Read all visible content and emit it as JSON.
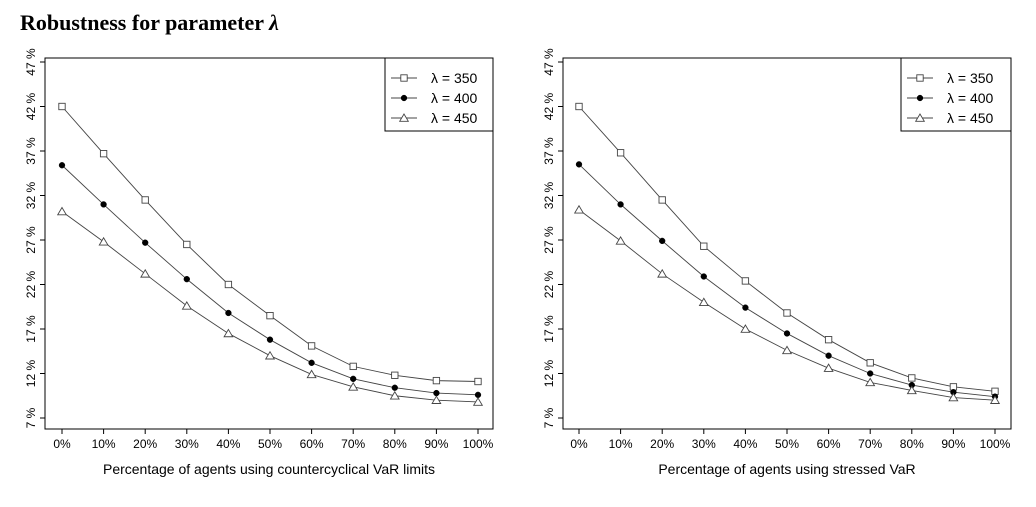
{
  "title": {
    "text": "Robustness for parameter ",
    "symbol": "λ"
  },
  "chart_data": [
    {
      "type": "line",
      "title": "",
      "xlabel": "Percentage of agents using countercyclical VaR limits",
      "ylabel": "",
      "categories": [
        "0%",
        "10%",
        "20%",
        "30%",
        "40%",
        "50%",
        "60%",
        "70%",
        "80%",
        "90%",
        "100%"
      ],
      "yticks": [
        "7 %",
        "12 %",
        "17 %",
        "22 %",
        "27 %",
        "32 %",
        "37 %",
        "42 %",
        "47 %"
      ],
      "ylim": [
        7,
        47
      ],
      "grid": false,
      "legend_position": "top-right",
      "series": [
        {
          "name": "λ = 350",
          "marker": "square",
          "values": [
            42.0,
            36.7,
            31.5,
            26.5,
            22.0,
            18.5,
            15.1,
            12.8,
            11.8,
            11.2,
            11.1
          ]
        },
        {
          "name": "λ = 400",
          "marker": "filled-circle",
          "values": [
            35.4,
            31.0,
            26.7,
            22.6,
            18.8,
            15.8,
            13.2,
            11.4,
            10.4,
            9.8,
            9.6
          ]
        },
        {
          "name": "λ = 450",
          "marker": "triangle",
          "values": [
            30.2,
            26.8,
            23.2,
            19.6,
            16.5,
            14.0,
            11.9,
            10.5,
            9.5,
            9.0,
            8.8
          ]
        }
      ]
    },
    {
      "type": "line",
      "title": "",
      "xlabel": "Percentage of agents using stressed VaR",
      "ylabel": "",
      "categories": [
        "0%",
        "10%",
        "20%",
        "30%",
        "40%",
        "50%",
        "60%",
        "70%",
        "80%",
        "90%",
        "100%"
      ],
      "yticks": [
        "7 %",
        "12 %",
        "17 %",
        "22 %",
        "27 %",
        "32 %",
        "37 %",
        "42 %",
        "47 %"
      ],
      "ylim": [
        7,
        47
      ],
      "grid": false,
      "legend_position": "top-right",
      "series": [
        {
          "name": "λ = 350",
          "marker": "square",
          "values": [
            42.0,
            36.8,
            31.5,
            26.3,
            22.4,
            18.8,
            15.8,
            13.2,
            11.5,
            10.5,
            10.0
          ]
        },
        {
          "name": "λ = 400",
          "marker": "filled-circle",
          "values": [
            35.5,
            31.0,
            26.9,
            22.9,
            19.4,
            16.5,
            14.0,
            12.0,
            10.7,
            9.9,
            9.4
          ]
        },
        {
          "name": "λ = 450",
          "marker": "triangle",
          "values": [
            30.4,
            26.9,
            23.2,
            20.0,
            17.0,
            14.6,
            12.6,
            11.0,
            10.1,
            9.3,
            9.0
          ]
        }
      ]
    }
  ]
}
